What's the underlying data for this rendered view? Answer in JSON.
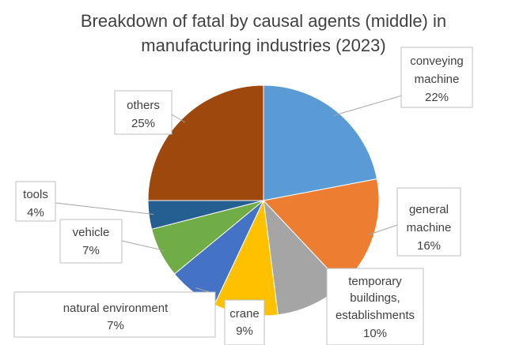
{
  "chart_data": {
    "type": "pie",
    "title": "Breakdown of fatal by causal agents (middle) in manufacturing industries (2023)",
    "title_lines": [
      "Breakdown of fatal by causal agents (middle) in",
      "manufacturing industries (2023)"
    ],
    "slices": [
      {
        "label": "conveying machine",
        "label_lines": [
          "conveying",
          "machine"
        ],
        "value": 22,
        "value_label": "22%",
        "color": "#5b9bd5"
      },
      {
        "label": "general machine",
        "label_lines": [
          "general",
          "machine"
        ],
        "value": 16,
        "value_label": "16%",
        "color": "#ed7d31"
      },
      {
        "label": "temporary buildings, establishments",
        "label_lines": [
          "temporary",
          "buildings,",
          "establishments"
        ],
        "value": 10,
        "value_label": "10%",
        "color": "#a5a5a5"
      },
      {
        "label": "crane",
        "label_lines": [
          "crane"
        ],
        "value": 9,
        "value_label": "9%",
        "color": "#ffc000"
      },
      {
        "label": "natural environment",
        "label_lines": [
          "natural environment"
        ],
        "value": 7,
        "value_label": "7%",
        "color": "#4472c4"
      },
      {
        "label": "vehicle",
        "label_lines": [
          "vehicle"
        ],
        "value": 7,
        "value_label": "7%",
        "color": "#70ad47"
      },
      {
        "label": "tools",
        "label_lines": [
          "tools"
        ],
        "value": 4,
        "value_label": "4%",
        "color": "#255e91"
      },
      {
        "label": "others",
        "label_lines": [
          "others"
        ],
        "value": 25,
        "value_label": "25%",
        "color": "#9e480e"
      }
    ],
    "start_angle_deg": 0,
    "direction": "clockwise"
  }
}
